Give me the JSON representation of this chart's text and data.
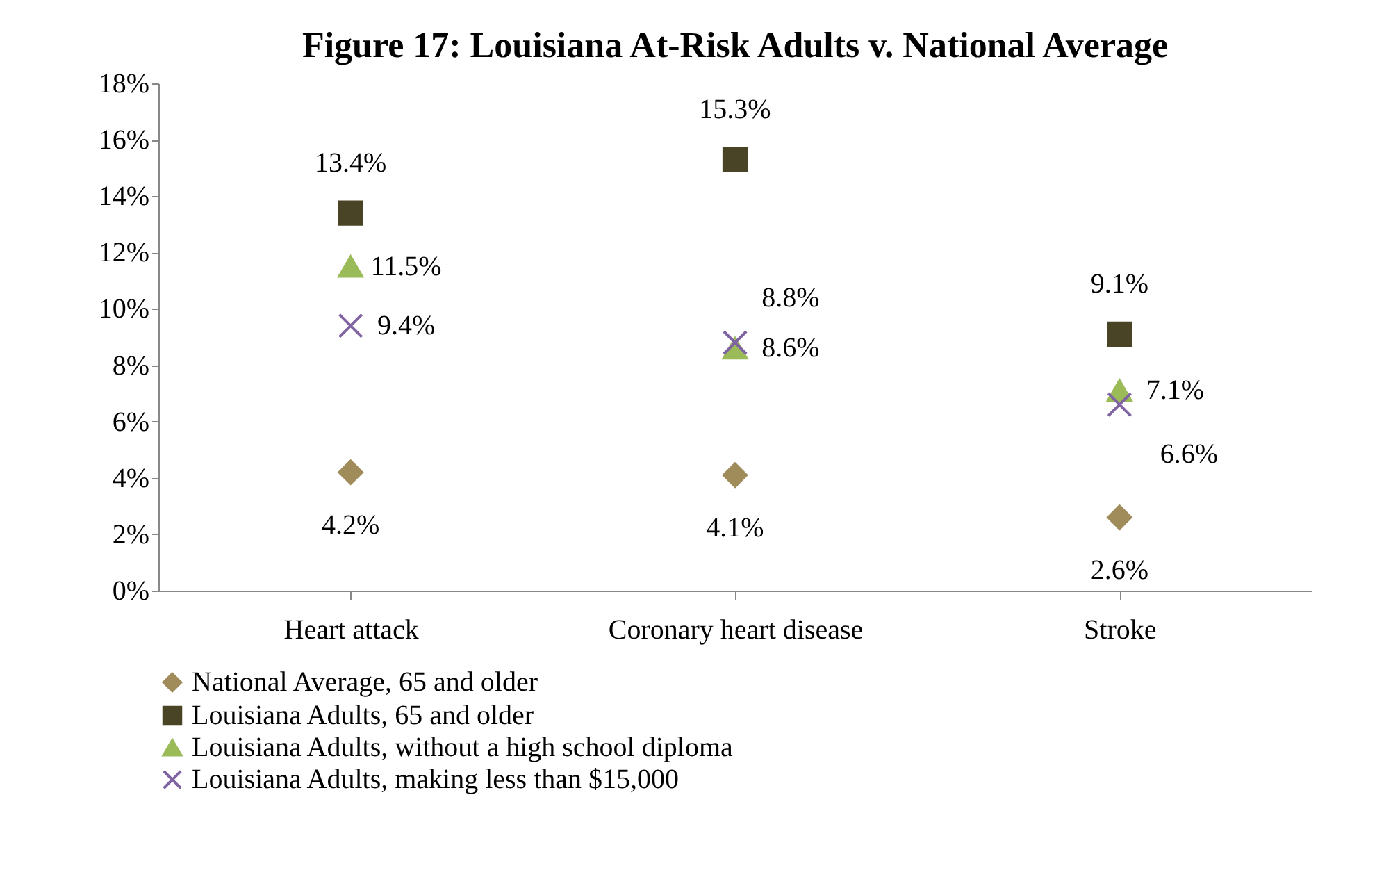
{
  "chart_data": {
    "type": "scatter",
    "title": "Figure 17: Louisiana At-Risk Adults v. National Average",
    "categories": [
      "Heart attack",
      "Coronary heart disease",
      "Stroke"
    ],
    "series": [
      {
        "name": "National Average, 65 and older",
        "color": "#a08c5b",
        "marker": "diamond",
        "values": [
          4.2,
          4.1,
          2.6
        ],
        "value_labels": [
          "4.2%",
          "4.1%",
          "2.6%"
        ]
      },
      {
        "name": "Louisiana Adults, 65 and older",
        "color": "#4a4427",
        "marker": "square",
        "values": [
          13.4,
          15.3,
          9.1
        ],
        "value_labels": [
          "13.4%",
          "15.3%",
          "9.1%"
        ]
      },
      {
        "name": "Louisiana Adults, without a high school diploma",
        "color": "#9bbb59",
        "marker": "triangle",
        "values": [
          11.5,
          8.6,
          7.1
        ],
        "value_labels": [
          "11.5%",
          "8.6%",
          "7.1%"
        ]
      },
      {
        "name": "Louisiana Adults, making less than $15,000",
        "color": "#8064a2",
        "marker": "cross",
        "values": [
          9.4,
          8.8,
          6.6
        ],
        "value_labels": [
          "9.4%",
          "8.8%",
          "6.6%"
        ]
      }
    ],
    "ylim": [
      0,
      18
    ],
    "yticks": [
      {
        "value": 0,
        "label": "0%"
      },
      {
        "value": 2,
        "label": "2%"
      },
      {
        "value": 4,
        "label": "4%"
      },
      {
        "value": 6,
        "label": "6%"
      },
      {
        "value": 8,
        "label": "8%"
      },
      {
        "value": 10,
        "label": "10%"
      },
      {
        "value": 12,
        "label": "12%"
      },
      {
        "value": 14,
        "label": "14%"
      },
      {
        "value": 16,
        "label": "16%"
      },
      {
        "value": 18,
        "label": "18%"
      }
    ],
    "grid": false,
    "legend": "bottom"
  }
}
